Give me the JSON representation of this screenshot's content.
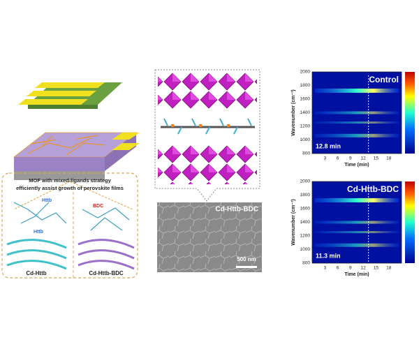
{
  "left_panel": {
    "caption": [
      "MOF with mixed-ligands strategy",
      "efficiently assist growth of perovskite films"
    ],
    "ligands": [
      "Httb",
      "Httb",
      "BDC"
    ],
    "labels": [
      "Cd-Httb",
      "Cd-Httb-BDC"
    ]
  },
  "sem": {
    "label": "Cd-Httb-BDC",
    "scale_bar": "500 nm"
  },
  "heatmaps": [
    {
      "label": "Control",
      "time": "12.8 min"
    },
    {
      "label": "Cd-Httb-BDC",
      "time": "11.3 min"
    }
  ],
  "axes": {
    "y_label": "Wavenumber (cm⁻¹)",
    "x_label": "Time (min)",
    "yticks": [
      800,
      1000,
      1200,
      1400,
      1600,
      1800,
      2000
    ],
    "xticks": [
      3,
      6,
      9,
      12,
      15,
      18
    ]
  }
}
